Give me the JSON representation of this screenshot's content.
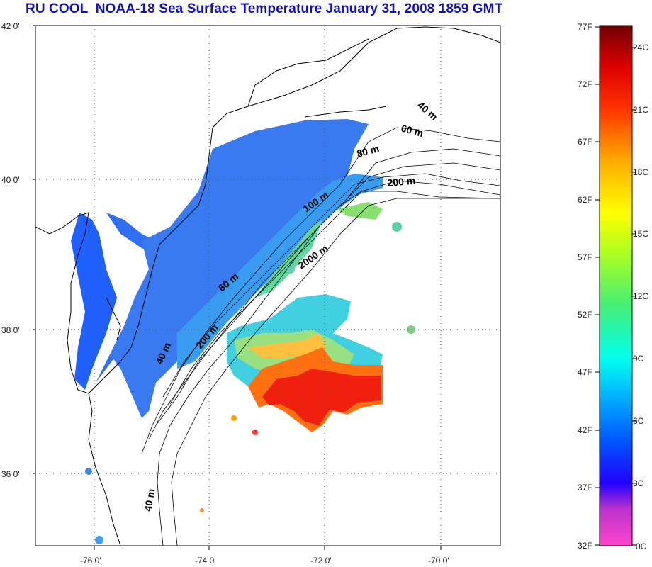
{
  "title": "RU COOL  NOAA-18 Sea Surface Temperature January 31, 2008 1859 GMT",
  "map": {
    "lat_labels": [
      "42 0'",
      "40 0'",
      "38 0'",
      "36 0'"
    ],
    "lon_labels": [
      "-76 0'",
      "-74 0'",
      "-72 0'",
      "-70 0'"
    ],
    "depth_contour_labels": [
      "40 m",
      "60 m",
      "80 m",
      "200 m",
      "100 m",
      "2000 m",
      "60 m",
      "200 m",
      "40 m",
      "40 m"
    ]
  },
  "colorbar": {
    "fahrenheit_labels": [
      "77F",
      "72F",
      "67F",
      "62F",
      "57F",
      "52F",
      "47F",
      "42F",
      "37F",
      "32F"
    ],
    "celsius_labels": [
      "24C",
      "21C",
      "18C",
      "15C",
      "12C",
      "9C",
      "6C",
      "3C",
      "0C"
    ],
    "colors": [
      "#ff44c8",
      "#9933cc",
      "#0000ff",
      "#2266ff",
      "#00ccff",
      "#44ee88",
      "#ffff00",
      "#ff8800",
      "#ff0000",
      "#b00000",
      "#700000"
    ]
  }
}
